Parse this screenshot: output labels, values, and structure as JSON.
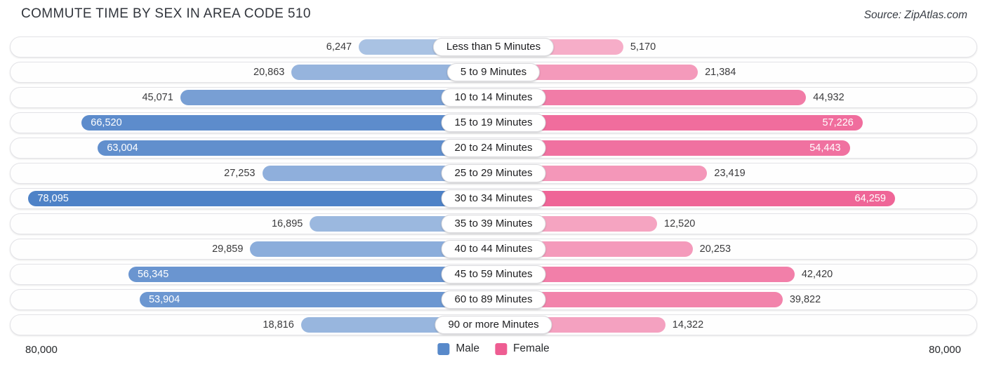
{
  "header": {
    "title": "COMMUTE TIME BY SEX IN AREA CODE 510",
    "source": "Source: ZipAtlas.com"
  },
  "chart_data": {
    "type": "bar",
    "subtype": "butterfly-pyramid",
    "title": "Commute Time by Sex in Area Code 510",
    "categories": [
      "Less than 5 Minutes",
      "5 to 9 Minutes",
      "10 to 14 Minutes",
      "15 to 19 Minutes",
      "20 to 24 Minutes",
      "25 to 29 Minutes",
      "30 to 34 Minutes",
      "35 to 39 Minutes",
      "40 to 44 Minutes",
      "45 to 59 Minutes",
      "60 to 89 Minutes",
      "90 or more Minutes"
    ],
    "series": [
      {
        "name": "Male",
        "base_color": "#2e6bbd",
        "legend_color": "#5889ca",
        "values": [
          6247,
          20863,
          45071,
          66520,
          63004,
          27253,
          78095,
          16895,
          29859,
          56345,
          53904,
          18816
        ],
        "labels": [
          "6,247",
          "20,863",
          "45,071",
          "66,520",
          "63,004",
          "27,253",
          "78,095",
          "16,895",
          "29,859",
          "56,345",
          "53,904",
          "18,816"
        ]
      },
      {
        "name": "Female",
        "base_color": "#ea3577",
        "legend_color": "#ee5d92",
        "values": [
          5170,
          21384,
          44932,
          57226,
          54443,
          23419,
          64259,
          12520,
          20253,
          42420,
          39822,
          14322
        ],
        "labels": [
          "5,170",
          "21,384",
          "44,932",
          "57,226",
          "54,443",
          "23,419",
          "64,259",
          "12,520",
          "20,253",
          "42,420",
          "39,822",
          "14,322"
        ]
      }
    ],
    "axis": {
      "max": 80000,
      "left_label": "80,000",
      "right_label": "80,000"
    },
    "legend_position": "bottom-center",
    "grid": false,
    "inside_label_threshold": 50000
  }
}
